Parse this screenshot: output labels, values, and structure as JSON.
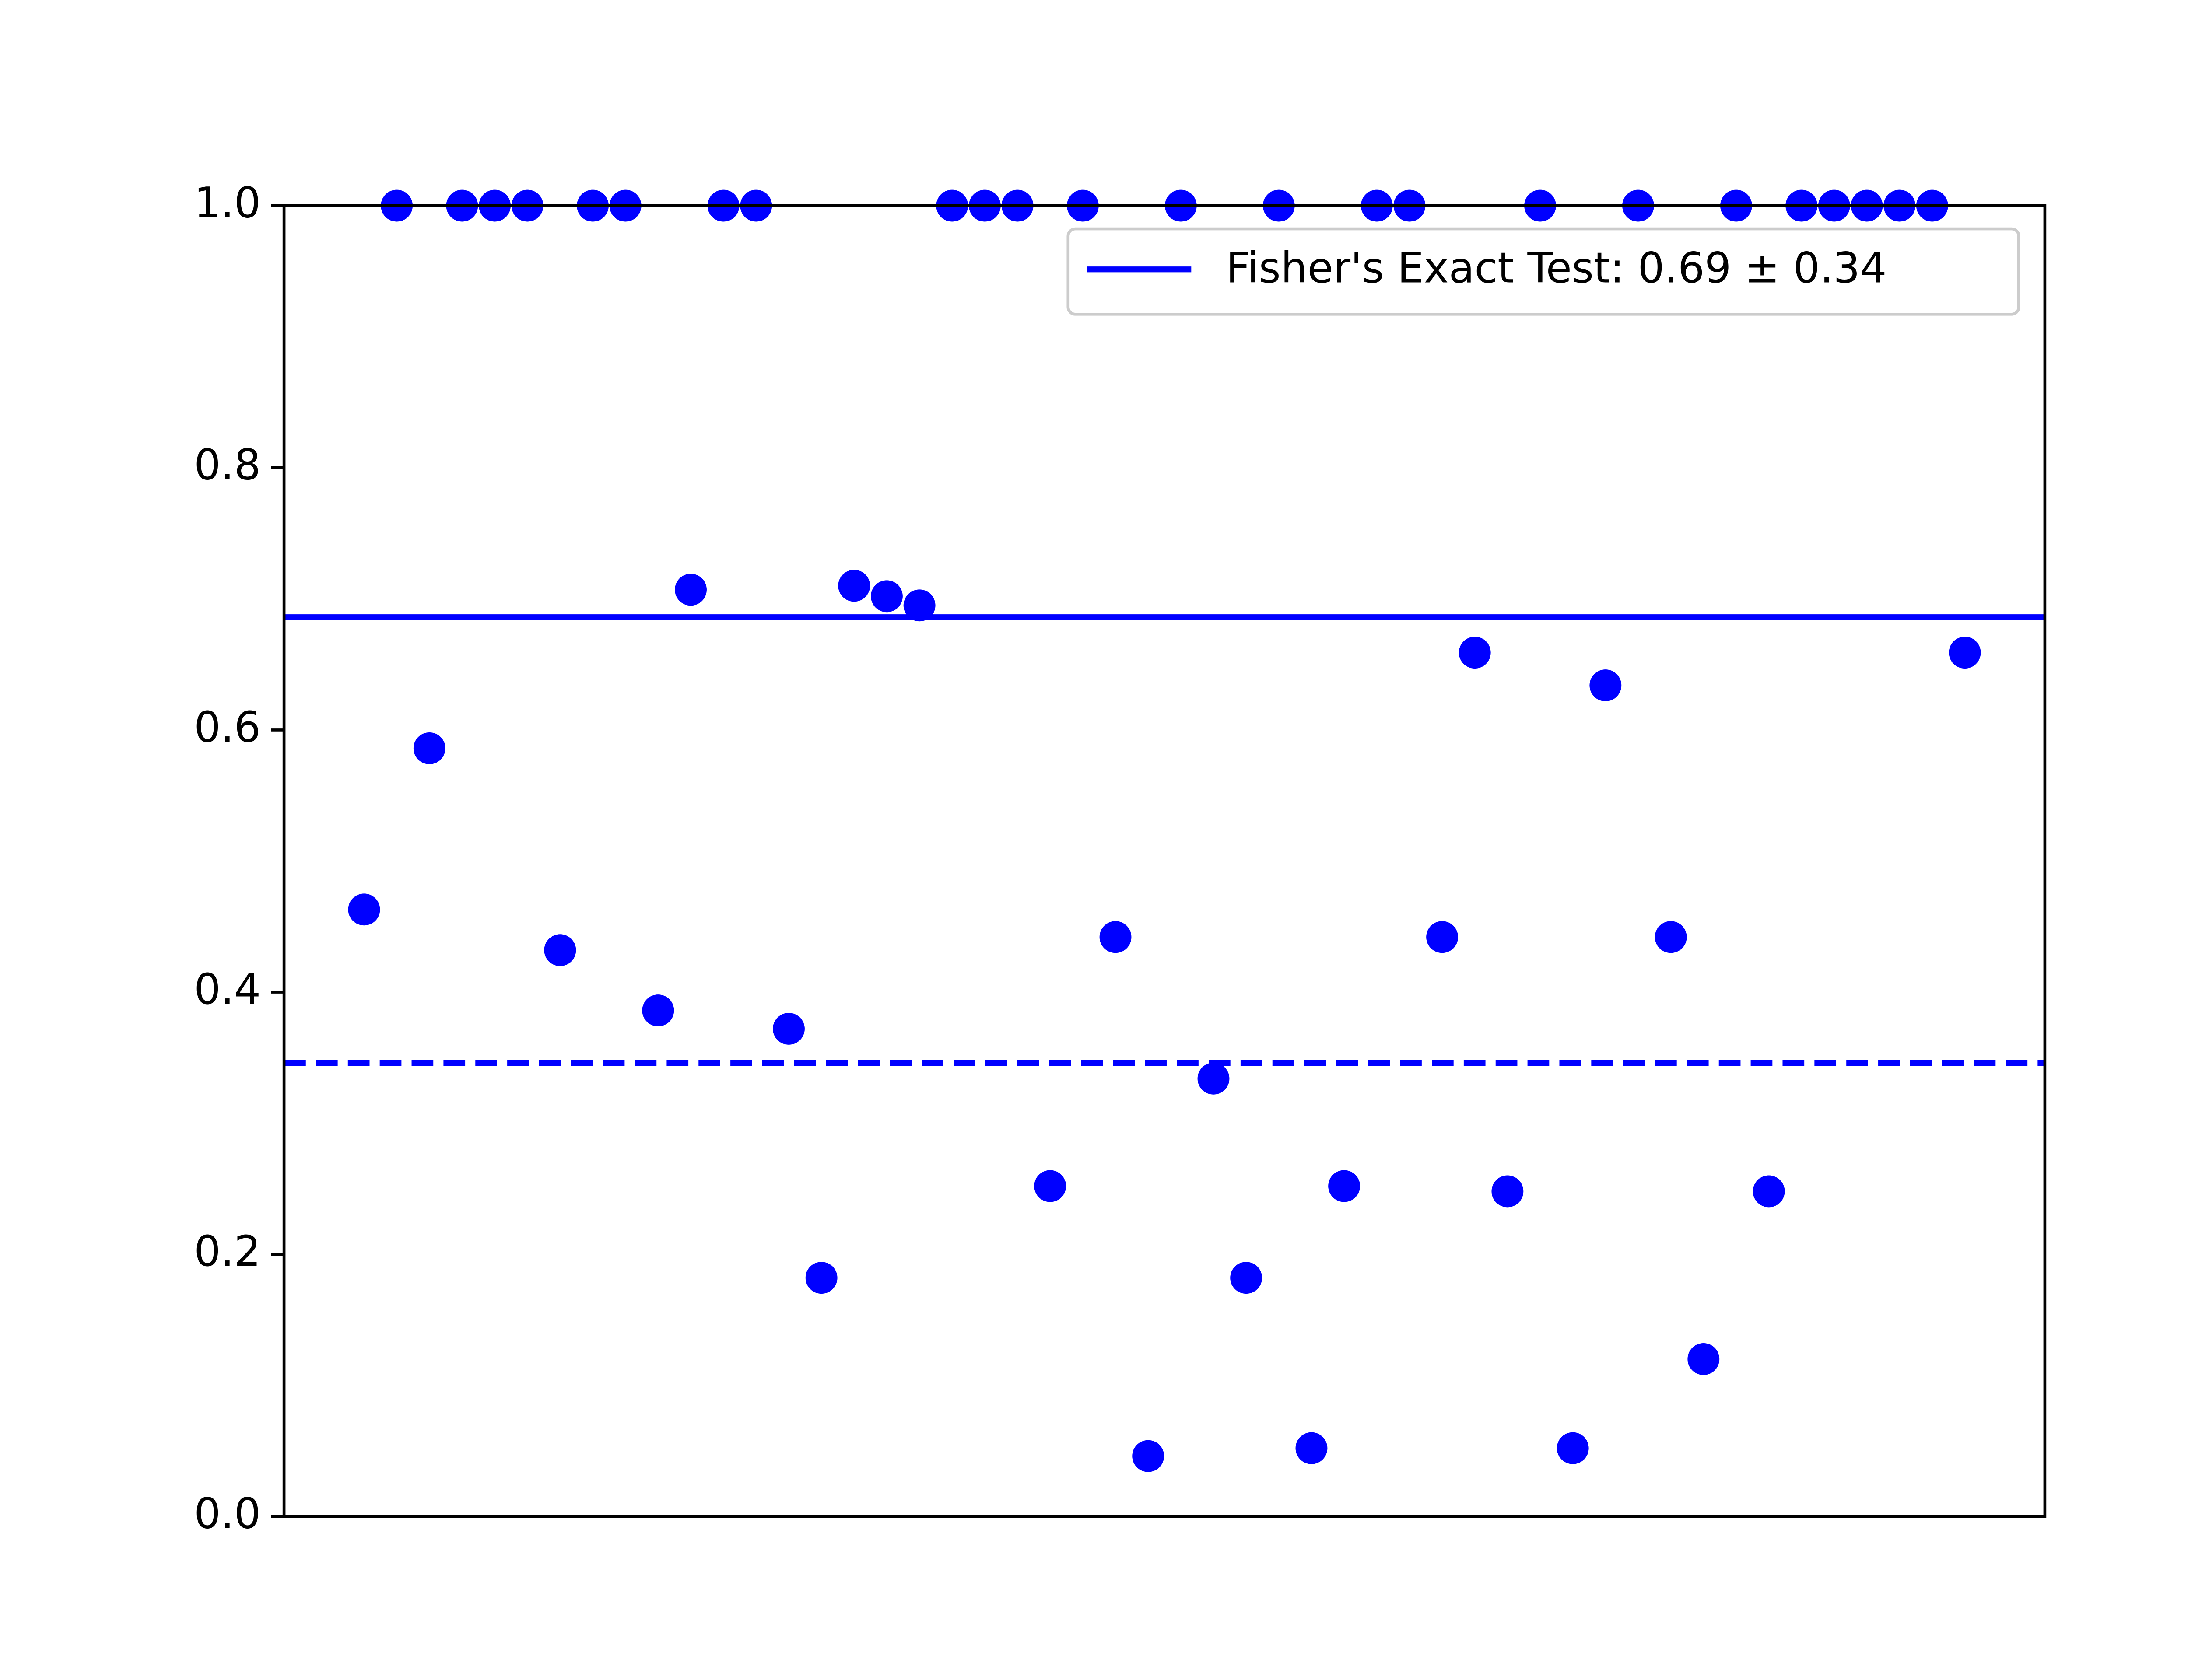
{
  "chart_data": {
    "type": "scatter",
    "x": [
      0,
      1,
      2,
      3,
      4,
      5,
      6,
      7,
      8,
      9,
      10,
      11,
      12,
      13,
      14,
      15,
      16,
      17,
      18,
      19,
      20,
      21,
      22,
      23,
      24,
      25,
      26,
      27,
      28,
      29,
      30,
      31,
      32,
      33,
      34,
      35,
      36,
      37,
      38,
      39,
      40,
      41,
      42,
      43,
      44,
      45,
      46,
      47,
      48,
      49
    ],
    "series": [
      {
        "color": "#0000ff",
        "values": [
          0.463,
          1.0,
          0.586,
          1.0,
          1.0,
          1.0,
          0.432,
          1.0,
          1.0,
          0.386,
          0.707,
          1.0,
          1.0,
          0.372,
          0.182,
          0.71,
          0.702,
          0.695,
          1.0,
          1.0,
          1.0,
          0.252,
          1.0,
          0.442,
          0.046,
          1.0,
          0.334,
          0.182,
          1.0,
          0.052,
          0.252,
          1.0,
          1.0,
          0.442,
          0.659,
          0.248,
          1.0,
          0.052,
          0.634,
          1.0,
          0.442,
          0.12,
          1.0,
          0.248,
          1.0,
          1.0,
          1.0,
          1.0,
          1.0,
          0.659
        ]
      }
    ],
    "reference_lines": [
      {
        "name": "Fisher's Exact Test: 0.69 ± 0.34",
        "value": 0.686,
        "color": "#0000ff",
        "dashed": false
      },
      {
        "value": 0.346,
        "color": "#0000ff",
        "dashed": true
      }
    ],
    "xlim": [
      -2.45,
      51.45
    ],
    "ylim": [
      0,
      1
    ],
    "yticks": [
      {
        "value": 0,
        "label": "0.0"
      },
      {
        "value": 0.2,
        "label": "0.2"
      },
      {
        "value": 0.4,
        "label": "0.4"
      },
      {
        "value": 0.6,
        "label": "0.6"
      },
      {
        "value": 0.8,
        "label": "0.8"
      },
      {
        "value": 1,
        "label": "1.0"
      }
    ],
    "legend": "upper right"
  }
}
